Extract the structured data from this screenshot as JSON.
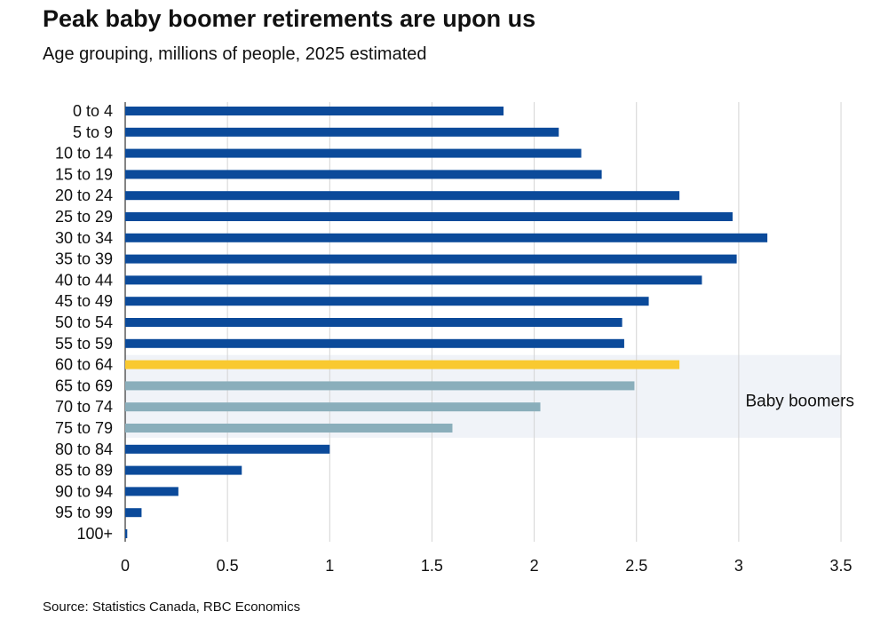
{
  "title": "Peak baby boomer retirements are upon us",
  "subtitle": "Age grouping, millions of people, 2025 estimated",
  "source": "Source: Statistics Canada, RBC Economics",
  "colors": {
    "default": "#0b4a9a",
    "highlight": "#f9c930",
    "boomer": "#8aaebb",
    "band": "#f0f3f8",
    "grid": "#d4d4d4",
    "axis": "#333333"
  },
  "chart_data": {
    "type": "bar",
    "orientation": "horizontal",
    "categories": [
      "0 to 4",
      "5 to 9",
      "10 to 14",
      "15 to 19",
      "20 to 24",
      "25 to 29",
      "30 to 34",
      "35 to 39",
      "40 to 44",
      "45 to 49",
      "50 to 54",
      "55 to 59",
      "60 to 64",
      "65 to 69",
      "70 to 74",
      "75 to 79",
      "80 to 84",
      "85 to 89",
      "90 to 94",
      "95 to 99",
      "100+"
    ],
    "values": [
      1.85,
      2.12,
      2.23,
      2.33,
      2.71,
      2.97,
      3.14,
      2.99,
      2.82,
      2.56,
      2.43,
      2.44,
      2.71,
      2.49,
      2.03,
      1.6,
      1.0,
      0.57,
      0.26,
      0.08,
      0.01
    ],
    "bar_color_keys": [
      "default",
      "default",
      "default",
      "default",
      "default",
      "default",
      "default",
      "default",
      "default",
      "default",
      "default",
      "default",
      "highlight",
      "boomer",
      "boomer",
      "boomer",
      "default",
      "default",
      "default",
      "default",
      "default"
    ],
    "xlim": [
      0,
      3.5
    ],
    "xticks": [
      "0",
      "0.5",
      "1",
      "1.5",
      "2",
      "2.5",
      "3",
      "3.5"
    ],
    "xtick_values": [
      0,
      0.5,
      1,
      1.5,
      2,
      2.5,
      3,
      3.5
    ],
    "grid": true,
    "annotation": {
      "text": "Baby boomers",
      "band_categories": [
        "60 to 64",
        "75 to 79"
      ]
    }
  }
}
